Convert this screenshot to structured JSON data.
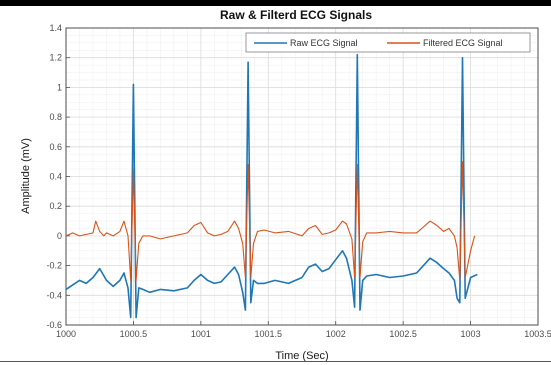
{
  "chart_data": {
    "type": "line",
    "title": "Raw & Filterd ECG Signals",
    "xlabel": "Time (Sec)",
    "ylabel": "Amplitude (mV)",
    "xlim": [
      1000,
      1003.5
    ],
    "ylim": [
      -0.6,
      1.4
    ],
    "xticks": [
      1000,
      1000.5,
      1001,
      1001.5,
      1002,
      1002.5,
      1003,
      1003.5
    ],
    "xtick_labels": [
      "1000",
      "1000.5",
      "1001",
      "1001.5",
      "1002",
      "1002.5",
      "1003",
      "1003.5"
    ],
    "yticks": [
      -0.6,
      -0.4,
      -0.2,
      0,
      0.2,
      0.4,
      0.6,
      0.8,
      1,
      1.2,
      1.4
    ],
    "ytick_labels": [
      "-0.6",
      "-0.4",
      "-0.2",
      "0",
      "0.2",
      "0.4",
      "0.6",
      "0.8",
      "1",
      "1.2",
      "1.4"
    ],
    "grid": true,
    "legend_position": "top-right",
    "series": [
      {
        "name": "Raw ECG Signal",
        "color": "#1f77b4",
        "x": [
          1000.0,
          1000.05,
          1000.1,
          1000.15,
          1000.2,
          1000.25,
          1000.3,
          1000.35,
          1000.4,
          1000.43,
          1000.46,
          1000.48,
          1000.5,
          1000.52,
          1000.54,
          1000.57,
          1000.62,
          1000.7,
          1000.8,
          1000.9,
          1000.95,
          1001.0,
          1001.05,
          1001.1,
          1001.15,
          1001.2,
          1001.25,
          1001.28,
          1001.31,
          1001.33,
          1001.35,
          1001.37,
          1001.39,
          1001.42,
          1001.47,
          1001.55,
          1001.65,
          1001.75,
          1001.8,
          1001.85,
          1001.9,
          1001.95,
          1002.0,
          1002.05,
          1002.08,
          1002.12,
          1002.14,
          1002.16,
          1002.18,
          1002.2,
          1002.23,
          1002.3,
          1002.4,
          1002.5,
          1002.6,
          1002.65,
          1002.7,
          1002.75,
          1002.8,
          1002.84,
          1002.88,
          1002.9,
          1002.92,
          1002.94,
          1002.96,
          1003.0,
          1003.05
        ],
        "y": [
          -0.36,
          -0.33,
          -0.3,
          -0.32,
          -0.28,
          -0.22,
          -0.3,
          -0.34,
          -0.3,
          -0.25,
          -0.35,
          -0.55,
          1.02,
          -0.55,
          -0.35,
          -0.36,
          -0.38,
          -0.36,
          -0.37,
          -0.35,
          -0.3,
          -0.26,
          -0.3,
          -0.32,
          -0.31,
          -0.26,
          -0.21,
          -0.26,
          -0.38,
          -0.5,
          1.17,
          -0.45,
          -0.3,
          -0.32,
          -0.32,
          -0.3,
          -0.32,
          -0.28,
          -0.21,
          -0.19,
          -0.24,
          -0.22,
          -0.16,
          -0.1,
          -0.15,
          -0.3,
          -0.48,
          1.22,
          -0.5,
          -0.3,
          -0.27,
          -0.26,
          -0.28,
          -0.27,
          -0.25,
          -0.2,
          -0.15,
          -0.18,
          -0.22,
          -0.25,
          -0.3,
          -0.42,
          -0.45,
          1.2,
          -0.42,
          -0.28,
          -0.26
        ]
      },
      {
        "name": "Filtered ECG Signal",
        "color": "#d95319",
        "x": [
          1000.0,
          1000.05,
          1000.1,
          1000.15,
          1000.2,
          1000.22,
          1000.25,
          1000.28,
          1000.3,
          1000.35,
          1000.4,
          1000.43,
          1000.46,
          1000.48,
          1000.5,
          1000.52,
          1000.54,
          1000.57,
          1000.62,
          1000.7,
          1000.8,
          1000.9,
          1000.95,
          1001.0,
          1001.05,
          1001.1,
          1001.15,
          1001.2,
          1001.25,
          1001.28,
          1001.31,
          1001.33,
          1001.35,
          1001.37,
          1001.39,
          1001.42,
          1001.47,
          1001.55,
          1001.65,
          1001.75,
          1001.8,
          1001.85,
          1001.9,
          1001.95,
          1002.0,
          1002.05,
          1002.08,
          1002.12,
          1002.14,
          1002.16,
          1002.18,
          1002.2,
          1002.23,
          1002.3,
          1002.4,
          1002.5,
          1002.6,
          1002.65,
          1002.7,
          1002.75,
          1002.8,
          1002.84,
          1002.88,
          1002.9,
          1002.92,
          1002.94,
          1002.96,
          1003.0,
          1003.03
        ],
        "y": [
          0.0,
          0.02,
          0.0,
          0.01,
          0.02,
          0.1,
          0.03,
          0.0,
          0.02,
          0.0,
          0.03,
          0.1,
          0.0,
          -0.3,
          0.45,
          -0.3,
          -0.05,
          0.0,
          0.0,
          -0.02,
          0.0,
          0.02,
          0.07,
          0.09,
          0.02,
          0.0,
          0.01,
          0.03,
          0.1,
          0.05,
          -0.05,
          -0.28,
          0.48,
          -0.28,
          -0.05,
          0.03,
          0.04,
          0.02,
          0.03,
          0.0,
          0.05,
          0.07,
          0.01,
          0.02,
          0.04,
          0.1,
          0.08,
          -0.02,
          -0.28,
          0.48,
          -0.28,
          -0.04,
          0.02,
          0.02,
          0.03,
          0.02,
          0.02,
          0.06,
          0.1,
          0.07,
          0.03,
          0.05,
          0.0,
          -0.08,
          -0.3,
          0.5,
          -0.28,
          -0.1,
          0.0
        ]
      }
    ]
  }
}
